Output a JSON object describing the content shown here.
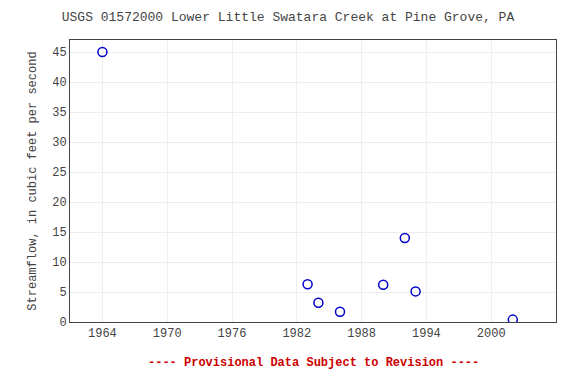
{
  "chart_data": {
    "type": "scatter",
    "title": "USGS 01572000 Lower Little Swatara Creek at Pine Grove, PA",
    "ylabel": "Streamflow, in cubic feet per second",
    "x": [
      1964,
      1983,
      1984,
      1986,
      1990,
      1992,
      1993,
      2002
    ],
    "values": [
      45,
      6.3,
      3.2,
      1.7,
      6.2,
      14,
      5.1,
      0.4
    ],
    "color": "#0000cc",
    "marker": "circle-open",
    "xlim": [
      1961,
      2006
    ],
    "ylim": [
      0,
      47
    ],
    "xticks": [
      1964,
      1970,
      1976,
      1982,
      1988,
      1994,
      2000
    ],
    "yticks": [
      0,
      5,
      10,
      15,
      20,
      25,
      30,
      35,
      40,
      45
    ],
    "grid": true,
    "annotations": [
      {
        "text": "---- Provisional Data Subject to Revision ----",
        "color": "#cc0000"
      }
    ]
  }
}
